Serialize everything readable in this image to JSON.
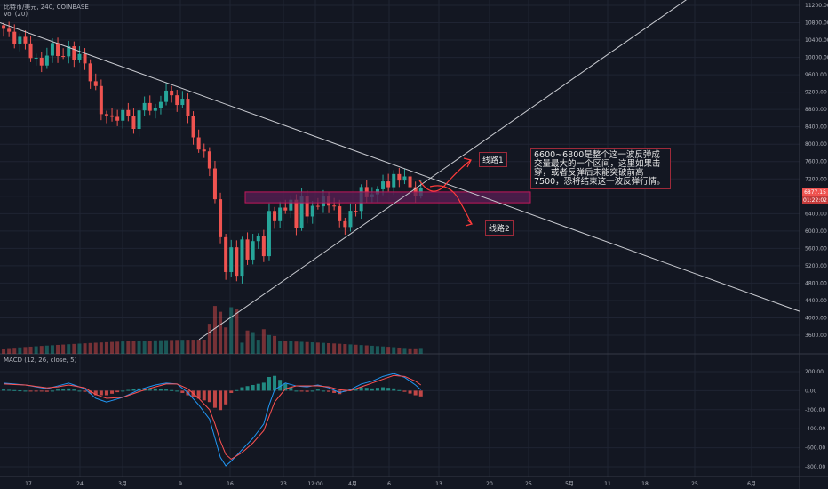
{
  "header": {
    "symbol": "比特币/美元, 240, COINBASE",
    "volume": "Vol (20)",
    "macd": "MACD (12, 26, close, 5)"
  },
  "price_badge": {
    "price": "6877.15",
    "time": "01:22:02"
  },
  "annotations": {
    "route1": "线路1",
    "route2": "线路2",
    "note": "6600~6800是整个这一波反弹成交量最大的一个区间，这里如果击穿，或者反弹后未能突破前高7500，恐将结束这一波反弹行情。"
  },
  "colors": {
    "background": "#131722",
    "up": "#26a69a",
    "down": "#ef5350",
    "macd_line": "#2196f3",
    "signal_line": "#ff5252",
    "zone_fill": "#5b1f55",
    "zone_border": "#c2185b",
    "arrow": "#ff3b3b"
  },
  "chart_data": [
    {
      "type": "candlestick",
      "title": "比特币/美元, 240, COINBASE",
      "y_axis_ticks": [
        3600,
        4000,
        4400,
        4800,
        5200,
        5600,
        6000,
        6400,
        6800,
        7200,
        7600,
        8000,
        8400,
        8800,
        9200,
        9600,
        10000,
        10400,
        10800,
        11200
      ],
      "x_axis_ticks": [
        "17",
        "24",
        "3月",
        "9",
        "16",
        "23",
        "12:00",
        "4月",
        "6",
        "13",
        "20",
        "25",
        "5月",
        "11",
        "18",
        "25",
        "6月"
      ],
      "ylim": [
        3400,
        11400
      ],
      "last_price": 6877.15,
      "close_path": [
        [
          0,
          10600
        ],
        [
          3,
          10400
        ],
        [
          5,
          10100
        ],
        [
          7,
          9800
        ],
        [
          9,
          10300
        ],
        [
          11,
          9950
        ],
        [
          12,
          10200
        ],
        [
          14,
          10000
        ],
        [
          15,
          9800
        ],
        [
          17,
          9300
        ],
        [
          18,
          8700
        ],
        [
          20,
          8600
        ],
        [
          22,
          8700
        ],
        [
          24,
          8500
        ],
        [
          26,
          8900
        ],
        [
          28,
          8800
        ],
        [
          30,
          9200
        ],
        [
          31,
          9100
        ],
        [
          33,
          8950
        ],
        [
          34,
          8600
        ],
        [
          35,
          8300
        ],
        [
          36,
          7800
        ],
        [
          37,
          7800
        ],
        [
          38,
          7500
        ],
        [
          39,
          6700
        ],
        [
          40,
          5900
        ],
        [
          41,
          5000
        ],
        [
          42,
          5600
        ],
        [
          43,
          5100
        ],
        [
          44,
          5700
        ],
        [
          45,
          5300
        ],
        [
          46,
          5900
        ],
        [
          47,
          5800
        ],
        [
          48,
          5400
        ],
        [
          49,
          6500
        ],
        [
          50,
          6200
        ],
        [
          51,
          6600
        ],
        [
          52,
          6400
        ],
        [
          53,
          6700
        ],
        [
          54,
          6200
        ],
        [
          55,
          6700
        ],
        [
          56,
          6300
        ],
        [
          57,
          6700
        ],
        [
          58,
          6500
        ],
        [
          59,
          6800
        ],
        [
          60,
          6600
        ],
        [
          61,
          6550
        ],
        [
          62,
          6300
        ],
        [
          63,
          6000
        ],
        [
          64,
          6450
        ],
        [
          65,
          6600
        ],
        [
          66,
          6900
        ],
        [
          67,
          6750
        ],
        [
          68,
          6950
        ],
        [
          69,
          6900
        ],
        [
          70,
          7150
        ],
        [
          71,
          7000
        ],
        [
          72,
          7300
        ],
        [
          73,
          7250
        ],
        [
          74,
          7150
        ],
        [
          75,
          7000
        ],
        [
          76,
          6950
        ],
        [
          77,
          6880
        ]
      ],
      "candle_count": 78
    },
    {
      "type": "bar",
      "title": "Vol (20)",
      "values_shape": "spike around crash (bars 39-42), moderate elsewhere"
    },
    {
      "type": "line",
      "title": "MACD (12, 26, close, 5)",
      "y_axis_ticks": [
        200,
        0,
        -200,
        -400,
        -600,
        -800
      ],
      "ylim": [
        -850,
        280
      ],
      "macd": [
        [
          0,
          80
        ],
        [
          4,
          60
        ],
        [
          8,
          20
        ],
        [
          10,
          50
        ],
        [
          12,
          80
        ],
        [
          15,
          20
        ],
        [
          17,
          -80
        ],
        [
          19,
          -120
        ],
        [
          22,
          -70
        ],
        [
          25,
          10
        ],
        [
          28,
          60
        ],
        [
          30,
          80
        ],
        [
          32,
          70
        ],
        [
          34,
          -20
        ],
        [
          36,
          -150
        ],
        [
          38,
          -300
        ],
        [
          39,
          -500
        ],
        [
          40,
          -700
        ],
        [
          41,
          -790
        ],
        [
          42,
          -740
        ],
        [
          44,
          -620
        ],
        [
          46,
          -500
        ],
        [
          48,
          -350
        ],
        [
          49,
          -150
        ],
        [
          50,
          10
        ],
        [
          52,
          80
        ],
        [
          54,
          50
        ],
        [
          56,
          40
        ],
        [
          58,
          60
        ],
        [
          60,
          30
        ],
        [
          62,
          -20
        ],
        [
          64,
          10
        ],
        [
          66,
          70
        ],
        [
          68,
          100
        ],
        [
          70,
          150
        ],
        [
          72,
          180
        ],
        [
          74,
          140
        ],
        [
          76,
          60
        ],
        [
          77,
          10
        ]
      ],
      "signal": [
        [
          0,
          70
        ],
        [
          4,
          60
        ],
        [
          8,
          30
        ],
        [
          10,
          40
        ],
        [
          12,
          60
        ],
        [
          15,
          30
        ],
        [
          17,
          -40
        ],
        [
          19,
          -80
        ],
        [
          22,
          -70
        ],
        [
          25,
          -10
        ],
        [
          28,
          40
        ],
        [
          30,
          70
        ],
        [
          32,
          70
        ],
        [
          34,
          20
        ],
        [
          36,
          -80
        ],
        [
          38,
          -200
        ],
        [
          39,
          -350
        ],
        [
          40,
          -530
        ],
        [
          41,
          -670
        ],
        [
          42,
          -720
        ],
        [
          44,
          -650
        ],
        [
          46,
          -550
        ],
        [
          48,
          -420
        ],
        [
          49,
          -270
        ],
        [
          50,
          -120
        ],
        [
          52,
          20
        ],
        [
          54,
          50
        ],
        [
          56,
          50
        ],
        [
          58,
          50
        ],
        [
          60,
          40
        ],
        [
          62,
          10
        ],
        [
          64,
          0
        ],
        [
          66,
          40
        ],
        [
          68,
          80
        ],
        [
          70,
          120
        ],
        [
          72,
          160
        ],
        [
          74,
          150
        ],
        [
          76,
          100
        ],
        [
          77,
          60
        ]
      ]
    }
  ]
}
